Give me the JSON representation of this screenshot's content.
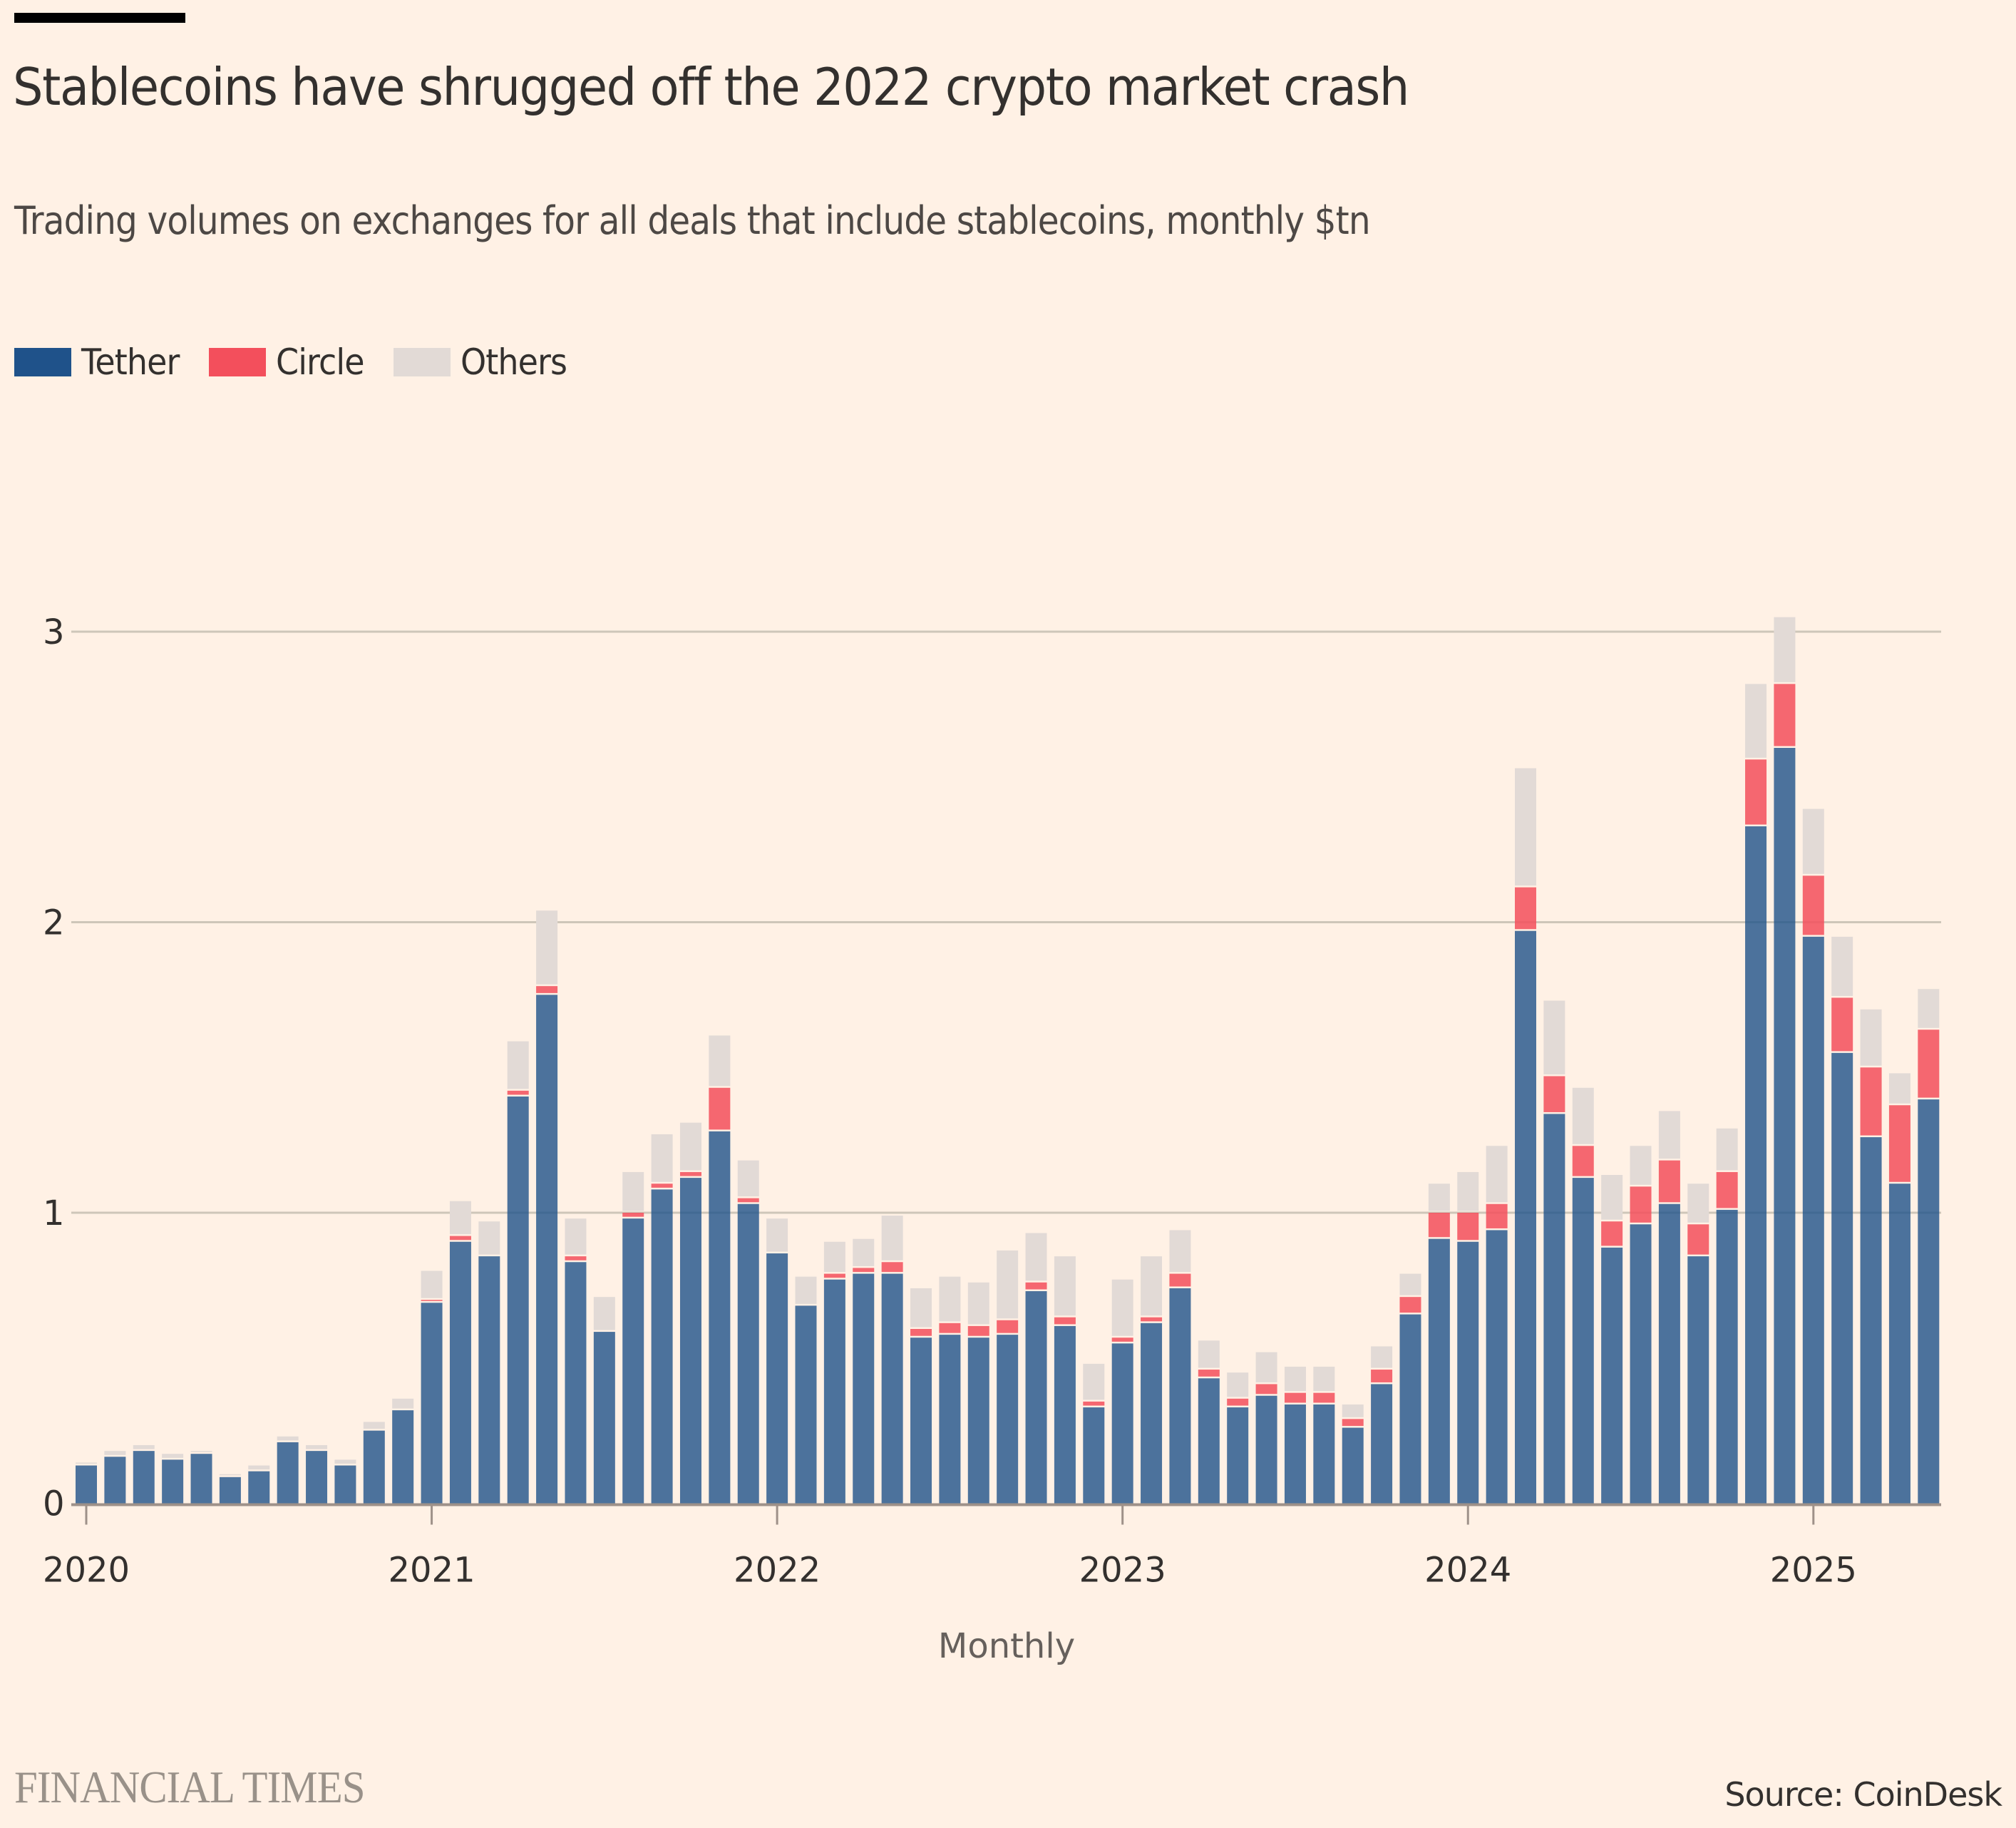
{
  "header": {
    "title": "Stablecoins have shrugged off the 2022 crypto market crash",
    "subtitle": "Trading volumes on exchanges for all deals that include stablecoins, monthly $tn"
  },
  "legend": [
    {
      "name": "Tether",
      "color": "#1f528a"
    },
    {
      "name": "Circle",
      "color": "#f34f5c"
    },
    {
      "name": "Others",
      "color": "#e2dad6"
    }
  ],
  "footer": {
    "logo": "FINANCIAL TIMES",
    "source": "Source: CoinDesk"
  },
  "chart_data": {
    "type": "bar",
    "stacked": true,
    "title": "Stablecoins have shrugged off the 2022 crypto market crash",
    "subtitle": "Trading volumes on exchanges for all deals that include stablecoins, monthly $tn",
    "xlabel": "Monthly",
    "ylabel": "",
    "ylim": [
      0,
      3
    ],
    "yticks": [
      0,
      1,
      2,
      3
    ],
    "xticks": [
      "2020",
      "2021",
      "2022",
      "2023",
      "2024",
      "2025"
    ],
    "grid": true,
    "legend_position": "top-left",
    "categories": [
      "2020-01",
      "2020-02",
      "2020-03",
      "2020-04",
      "2020-05",
      "2020-06",
      "2020-07",
      "2020-08",
      "2020-09",
      "2020-10",
      "2020-11",
      "2020-12",
      "2021-01",
      "2021-02",
      "2021-03",
      "2021-04",
      "2021-05",
      "2021-06",
      "2021-07",
      "2021-08",
      "2021-09",
      "2021-10",
      "2021-11",
      "2021-12",
      "2022-01",
      "2022-02",
      "2022-03",
      "2022-04",
      "2022-05",
      "2022-06",
      "2022-07",
      "2022-08",
      "2022-09",
      "2022-10",
      "2022-11",
      "2022-12",
      "2023-01",
      "2023-02",
      "2023-03",
      "2023-04",
      "2023-05",
      "2023-06",
      "2023-07",
      "2023-08",
      "2023-09",
      "2023-10",
      "2023-11",
      "2023-12",
      "2024-01",
      "2024-02",
      "2024-03",
      "2024-04",
      "2024-05",
      "2024-06",
      "2024-07",
      "2024-08",
      "2024-09",
      "2024-10",
      "2024-11",
      "2024-12",
      "2025-01",
      "2025-02",
      "2025-03",
      "2025-04",
      "2025-05"
    ],
    "series": [
      {
        "name": "Tether",
        "color": "#1f528a",
        "values": [
          0.13,
          0.16,
          0.18,
          0.15,
          0.17,
          0.09,
          0.11,
          0.21,
          0.18,
          0.13,
          0.25,
          0.32,
          0.69,
          0.9,
          0.85,
          1.4,
          1.75,
          0.83,
          0.59,
          0.98,
          1.08,
          1.12,
          1.28,
          1.03,
          0.86,
          0.68,
          0.77,
          0.79,
          0.79,
          0.57,
          0.58,
          0.57,
          0.58,
          0.73,
          0.61,
          0.33,
          0.55,
          0.62,
          0.74,
          0.43,
          0.33,
          0.37,
          0.34,
          0.34,
          0.26,
          0.41,
          0.65,
          0.91,
          0.9,
          0.94,
          1.97,
          1.34,
          1.12,
          0.88,
          0.96,
          1.03,
          0.85,
          1.01,
          2.33,
          2.6,
          1.95,
          1.55,
          1.26,
          1.1,
          1.39
        ]
      },
      {
        "name": "Circle",
        "color": "#f34f5c",
        "values": [
          0,
          0,
          0,
          0,
          0,
          0,
          0,
          0,
          0,
          0,
          0,
          0,
          0.01,
          0.02,
          0,
          0.02,
          0.03,
          0.02,
          0,
          0.02,
          0.02,
          0.02,
          0.15,
          0.02,
          0,
          0,
          0.02,
          0.02,
          0.04,
          0.03,
          0.04,
          0.04,
          0.05,
          0.03,
          0.03,
          0.02,
          0.02,
          0.02,
          0.05,
          0.03,
          0.03,
          0.04,
          0.04,
          0.04,
          0.03,
          0.05,
          0.06,
          0.09,
          0.1,
          0.09,
          0.15,
          0.13,
          0.11,
          0.09,
          0.13,
          0.15,
          0.11,
          0.13,
          0.23,
          0.22,
          0.21,
          0.19,
          0.24,
          0.27,
          0.24
        ]
      },
      {
        "name": "Others",
        "color": "#e2dad6",
        "values": [
          0.01,
          0.02,
          0.02,
          0.02,
          0.01,
          0.01,
          0.02,
          0.02,
          0.02,
          0.02,
          0.03,
          0.04,
          0.1,
          0.12,
          0.12,
          0.17,
          0.26,
          0.13,
          0.12,
          0.14,
          0.17,
          0.17,
          0.18,
          0.13,
          0.12,
          0.1,
          0.11,
          0.1,
          0.16,
          0.14,
          0.16,
          0.15,
          0.24,
          0.17,
          0.21,
          0.13,
          0.2,
          0.21,
          0.15,
          0.1,
          0.09,
          0.11,
          0.09,
          0.09,
          0.05,
          0.08,
          0.08,
          0.1,
          0.14,
          0.2,
          0.41,
          0.26,
          0.2,
          0.16,
          0.14,
          0.17,
          0.14,
          0.15,
          0.26,
          0.23,
          0.23,
          0.21,
          0.2,
          0.11,
          0.14
        ]
      }
    ]
  }
}
